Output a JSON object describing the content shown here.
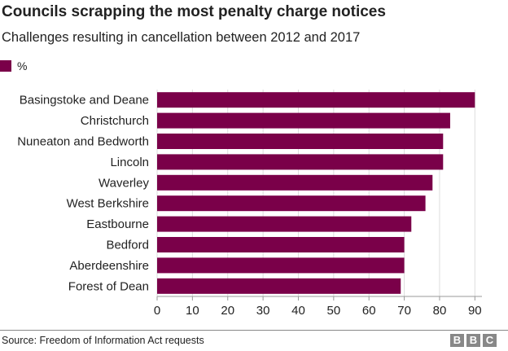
{
  "title": "Councils scrapping the most penalty charge notices",
  "subtitle": "Challenges resulting in cancellation between 2012 and 2017",
  "legend": {
    "label": "%",
    "color": "#7a0049"
  },
  "chart_data": {
    "type": "bar",
    "orientation": "horizontal",
    "categories": [
      "Basingstoke and Deane",
      "Christchurch",
      "Nuneaton and Bedworth",
      "Lincoln",
      "Waverley",
      "West Berkshire",
      "Eastbourne",
      "Bedford",
      "Aberdeenshire",
      "Forest of Dean"
    ],
    "series": [
      {
        "name": "%",
        "values": [
          90,
          83,
          81,
          81,
          78,
          76,
          72,
          70,
          70,
          69
        ],
        "color": "#7a0049"
      }
    ],
    "xticks": [
      0,
      10,
      20,
      30,
      40,
      50,
      60,
      70,
      80,
      90
    ],
    "xlim": [
      0,
      92
    ],
    "grid": true
  },
  "footer": {
    "source": "Source: Freedom of Information Act requests",
    "logo_letters": [
      "B",
      "B",
      "C"
    ]
  }
}
